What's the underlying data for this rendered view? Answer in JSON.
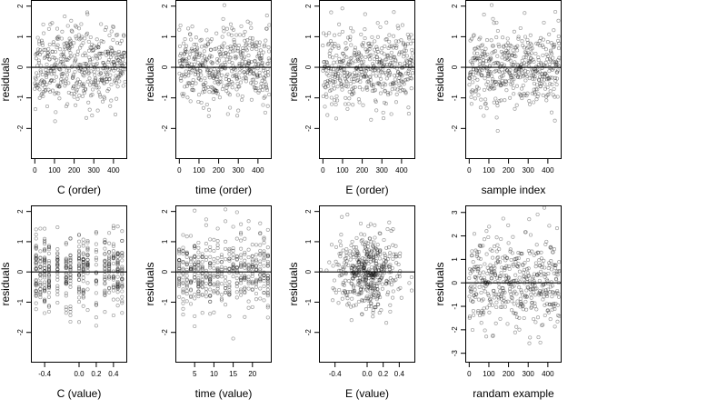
{
  "figure": {
    "background": "#ffffff",
    "point_color": "#000000",
    "point_opacity": 0.38,
    "hline_color": "#000000"
  },
  "chart_data": [
    {
      "id": "c-order",
      "type": "scatter",
      "xlabel": "C (order)",
      "ylabel": "residuals",
      "xlim": [
        -20,
        470
      ],
      "ylim": [
        -3.0,
        2.2
      ],
      "xticks": [
        0,
        100,
        200,
        300,
        400
      ],
      "xtick_labels": [
        "0",
        "100",
        "200",
        "300",
        "400"
      ],
      "yticks": [
        -2,
        -1,
        0,
        1,
        2
      ],
      "ytick_labels": [
        "-2",
        "-1",
        "0",
        "1",
        "2"
      ],
      "hline": 0,
      "grid": false,
      "legend": "none",
      "x_kind": "index",
      "n": 460,
      "x_values": [],
      "y_sd": 0.62,
      "seed": 11
    },
    {
      "id": "time-order",
      "type": "scatter",
      "xlabel": "time (order)",
      "ylabel": "residuals",
      "xlim": [
        -20,
        470
      ],
      "ylim": [
        -3.0,
        2.2
      ],
      "xticks": [
        0,
        100,
        200,
        300,
        400
      ],
      "xtick_labels": [
        "0",
        "100",
        "200",
        "300",
        "400"
      ],
      "yticks": [
        -2,
        -1,
        0,
        1,
        2
      ],
      "ytick_labels": [
        "-2",
        "-1",
        "0",
        "1",
        "2"
      ],
      "hline": 0,
      "grid": false,
      "legend": "none",
      "x_kind": "index",
      "n": 460,
      "x_values": [],
      "y_sd": 0.62,
      "seed": 23
    },
    {
      "id": "e-order",
      "type": "scatter",
      "xlabel": "E (order)",
      "ylabel": "residuals",
      "xlim": [
        -20,
        470
      ],
      "ylim": [
        -3.0,
        2.2
      ],
      "xticks": [
        0,
        100,
        200,
        300,
        400
      ],
      "xtick_labels": [
        "0",
        "100",
        "200",
        "300",
        "400"
      ],
      "yticks": [
        -2,
        -1,
        0,
        1,
        2
      ],
      "ytick_labels": [
        "-2",
        "-1",
        "0",
        "1",
        "2"
      ],
      "hline": 0,
      "grid": false,
      "legend": "none",
      "x_kind": "index",
      "n": 460,
      "x_values": [],
      "y_sd": 0.62,
      "seed": 37
    },
    {
      "id": "sample-index",
      "type": "scatter",
      "xlabel": "sample index",
      "ylabel": "residuals",
      "xlim": [
        -20,
        470
      ],
      "ylim": [
        -3.0,
        2.2
      ],
      "xticks": [
        0,
        100,
        200,
        300,
        400
      ],
      "xtick_labels": [
        "0",
        "100",
        "200",
        "300",
        "400"
      ],
      "yticks": [
        -2,
        -1,
        0,
        1,
        2
      ],
      "ytick_labels": [
        "-2",
        "-1",
        "0",
        "1",
        "2"
      ],
      "hline": 0,
      "grid": false,
      "legend": "none",
      "x_kind": "index",
      "n": 460,
      "x_values": [],
      "y_sd": 0.62,
      "seed": 41
    },
    {
      "id": "c-value",
      "type": "scatter",
      "xlabel": "C (value)",
      "ylabel": "residuals",
      "xlim": [
        -0.56,
        0.56
      ],
      "ylim": [
        -3.0,
        2.2
      ],
      "xticks": [
        -0.4,
        0.0,
        0.2,
        0.4
      ],
      "xtick_labels": [
        "-0.4",
        "0.0",
        "0.2",
        "0.4"
      ],
      "yticks": [
        -2,
        -1,
        0,
        1,
        2
      ],
      "ytick_labels": [
        "-2",
        "-1",
        "0",
        "1",
        "2"
      ],
      "hline": 0,
      "grid": false,
      "legend": "none",
      "x_kind": "discrete",
      "n": 460,
      "x_values": [
        -0.5,
        -0.45,
        -0.4,
        -0.35,
        -0.25,
        -0.15,
        -0.1,
        0.0,
        0.05,
        0.1,
        0.2,
        0.3,
        0.35,
        0.4,
        0.45,
        0.5
      ],
      "y_sd": 0.62,
      "seed": 53
    },
    {
      "id": "time-value",
      "type": "scatter",
      "xlabel": "time (value)",
      "ylabel": "residuals",
      "xlim": [
        0,
        25
      ],
      "ylim": [
        -3.0,
        2.2
      ],
      "xticks": [
        5,
        10,
        15,
        20
      ],
      "xtick_labels": [
        "5",
        "10",
        "15",
        "20"
      ],
      "yticks": [
        -2,
        -1,
        0,
        1,
        2
      ],
      "ytick_labels": [
        "-2",
        "-1",
        "0",
        "1",
        "2"
      ],
      "hline": 0,
      "grid": false,
      "legend": "none",
      "x_kind": "discrete",
      "n": 460,
      "x_values": [
        1,
        2,
        3,
        4,
        5,
        6,
        7,
        8,
        9,
        10,
        11,
        12,
        13,
        14,
        15,
        16,
        17,
        18,
        19,
        20,
        21,
        22,
        23,
        24
      ],
      "y_sd": 0.62,
      "seed": 67
    },
    {
      "id": "e-value",
      "type": "scatter",
      "xlabel": "E (value)",
      "ylabel": "residuals",
      "xlim": [
        -0.6,
        0.6
      ],
      "ylim": [
        -3.0,
        2.2
      ],
      "xticks": [
        -0.4,
        0.0,
        0.2,
        0.4
      ],
      "xtick_labels": [
        "-0.4",
        "0.0",
        "0.2",
        "0.4"
      ],
      "yticks": [
        -2,
        -1,
        0,
        1,
        2
      ],
      "ytick_labels": [
        "-2",
        "-1",
        "0",
        "1",
        "2"
      ],
      "hline": 0,
      "grid": false,
      "legend": "none",
      "x_kind": "continuous",
      "n": 460,
      "x_values": [],
      "x_mean": 0.0,
      "x_sd": 0.2,
      "y_sd": 0.62,
      "seed": 79
    },
    {
      "id": "randam-example",
      "type": "scatter",
      "xlabel": "randam example",
      "ylabel": "residuals",
      "xlim": [
        -20,
        470
      ],
      "ylim": [
        -3.4,
        3.3
      ],
      "xticks": [
        0,
        100,
        200,
        300,
        400
      ],
      "xtick_labels": [
        "0",
        "100",
        "200",
        "300",
        "400"
      ],
      "yticks": [
        -3,
        -2,
        -1,
        0,
        1,
        2,
        3
      ],
      "ytick_labels": [
        "-3",
        "-2",
        "-1",
        "0",
        "1",
        "2",
        "3"
      ],
      "hline": 0,
      "grid": false,
      "legend": "none",
      "x_kind": "index",
      "n": 460,
      "x_values": [],
      "y_sd": 1.0,
      "seed": 97
    }
  ]
}
